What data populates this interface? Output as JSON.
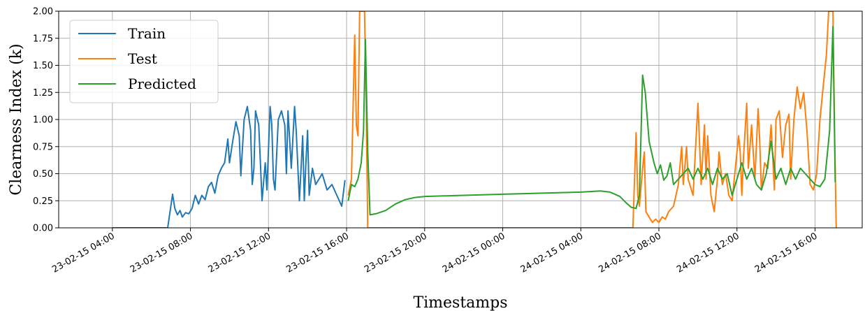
{
  "chart_data": {
    "type": "line",
    "xlabel": "Timestamps",
    "ylabel": "Clearness Index (k)",
    "ylim": [
      0,
      2.0
    ],
    "xlim": [
      "2023-02-15 01:15",
      "2024-02-15 18:25"
    ],
    "grid": true,
    "legend_placement": "top-left",
    "yticks": [
      "0.00",
      "0.25",
      "0.50",
      "0.75",
      "1.00",
      "1.25",
      "1.50",
      "1.75",
      "2.00"
    ],
    "xticks": [
      {
        "label": "23-02-15 04:00",
        "at": "2023-02-15 04:00"
      },
      {
        "label": "23-02-15 08:00",
        "at": "2023-02-15 08:00"
      },
      {
        "label": "23-02-15 12:00",
        "at": "2023-02-15 12:00"
      },
      {
        "label": "23-02-15 16:00",
        "at": "2023-02-15 16:00"
      },
      {
        "label": "23-02-15 20:00",
        "at": "2023-02-15 20:00"
      },
      {
        "label": "24-02-15 00:00",
        "at": "2024-02-15 00:00"
      },
      {
        "label": "24-02-15 04:00",
        "at": "2024-02-15 04:00"
      },
      {
        "label": "24-02-15 08:00",
        "at": "2024-02-15 08:00"
      },
      {
        "label": "24-02-15 12:00",
        "at": "2024-02-15 12:00"
      },
      {
        "label": "24-02-15 16:00",
        "at": "2024-02-15 16:00"
      }
    ],
    "series": [
      {
        "name": "Train",
        "color": "#1f77b4",
        "points": [
          [
            "2023-02-15 04:00",
            0
          ],
          [
            "2023-02-15 06:50",
            0
          ],
          [
            "2023-02-15 07:05",
            0.31
          ],
          [
            "2023-02-15 07:12",
            0.18
          ],
          [
            "2023-02-15 07:20",
            0.12
          ],
          [
            "2023-02-15 07:28",
            0.16
          ],
          [
            "2023-02-15 07:35",
            0.1
          ],
          [
            "2023-02-15 07:45",
            0.14
          ],
          [
            "2023-02-15 07:55",
            0.13
          ],
          [
            "2023-02-15 08:05",
            0.18
          ],
          [
            "2023-02-15 08:15",
            0.3
          ],
          [
            "2023-02-15 08:25",
            0.22
          ],
          [
            "2023-02-15 08:35",
            0.3
          ],
          [
            "2023-02-15 08:45",
            0.26
          ],
          [
            "2023-02-15 08:55",
            0.38
          ],
          [
            "2023-02-15 09:05",
            0.42
          ],
          [
            "2023-02-15 09:15",
            0.32
          ],
          [
            "2023-02-15 09:25",
            0.48
          ],
          [
            "2023-02-15 09:35",
            0.55
          ],
          [
            "2023-02-15 09:45",
            0.6
          ],
          [
            "2023-02-15 09:55",
            0.82
          ],
          [
            "2023-02-15 10:00",
            0.6
          ],
          [
            "2023-02-15 10:10",
            0.8
          ],
          [
            "2023-02-15 10:20",
            0.98
          ],
          [
            "2023-02-15 10:30",
            0.85
          ],
          [
            "2023-02-15 10:35",
            0.48
          ],
          [
            "2023-02-15 10:45",
            1.0
          ],
          [
            "2023-02-15 10:55",
            1.12
          ],
          [
            "2023-02-15 11:05",
            0.9
          ],
          [
            "2023-02-15 11:10",
            0.4
          ],
          [
            "2023-02-15 11:15",
            0.55
          ],
          [
            "2023-02-15 11:20",
            1.08
          ],
          [
            "2023-02-15 11:30",
            0.95
          ],
          [
            "2023-02-15 11:35",
            0.6
          ],
          [
            "2023-02-15 11:40",
            0.25
          ],
          [
            "2023-02-15 11:50",
            0.6
          ],
          [
            "2023-02-15 11:55",
            0.35
          ],
          [
            "2023-02-15 12:05",
            1.12
          ],
          [
            "2023-02-15 12:10",
            0.95
          ],
          [
            "2023-02-15 12:15",
            0.45
          ],
          [
            "2023-02-15 12:20",
            0.35
          ],
          [
            "2023-02-15 12:30",
            1.0
          ],
          [
            "2023-02-15 12:40",
            1.08
          ],
          [
            "2023-02-15 12:50",
            0.95
          ],
          [
            "2023-02-15 12:55",
            0.5
          ],
          [
            "2023-02-15 13:00",
            1.08
          ],
          [
            "2023-02-15 13:10",
            0.55
          ],
          [
            "2023-02-15 13:20",
            1.12
          ],
          [
            "2023-02-15 13:25",
            0.9
          ],
          [
            "2023-02-15 13:35",
            0.25
          ],
          [
            "2023-02-15 13:40",
            0.55
          ],
          [
            "2023-02-15 13:45",
            0.85
          ],
          [
            "2023-02-15 13:50",
            0.25
          ],
          [
            "2023-02-15 13:55",
            0.6
          ],
          [
            "2023-02-15 14:00",
            0.9
          ],
          [
            "2023-02-15 14:05",
            0.3
          ],
          [
            "2023-02-15 14:15",
            0.55
          ],
          [
            "2023-02-15 14:25",
            0.4
          ],
          [
            "2023-02-15 14:35",
            0.45
          ],
          [
            "2023-02-15 14:45",
            0.5
          ],
          [
            "2023-02-15 15:00",
            0.35
          ],
          [
            "2023-02-15 15:15",
            0.4
          ],
          [
            "2023-02-15 15:30",
            0.3
          ],
          [
            "2023-02-15 15:45",
            0.2
          ],
          [
            "2023-02-15 15:55",
            0.44
          ]
        ]
      },
      {
        "name": "Test",
        "color": "#ff7f0e",
        "points": [
          [
            "2023-02-15 16:05",
            0.3
          ],
          [
            "2023-02-15 16:15",
            0.45
          ],
          [
            "2023-02-15 16:25",
            1.78
          ],
          [
            "2023-02-15 16:30",
            0.95
          ],
          [
            "2023-02-15 16:35",
            0.85
          ],
          [
            "2023-02-15 16:40",
            2.0
          ],
          [
            "2023-02-15 16:55",
            2.0
          ],
          [
            "2023-02-15 17:00",
            1.2
          ],
          [
            "2023-02-15 17:05",
            0
          ],
          [
            "2023-02-15 20:00",
            0
          ],
          [
            "2024-02-15 00:00",
            0
          ],
          [
            "2024-02-15 06:40",
            0
          ],
          [
            "2024-02-15 06:50",
            0.88
          ],
          [
            "2024-02-15 06:55",
            0.3
          ],
          [
            "2024-02-15 07:00",
            0.2
          ],
          [
            "2024-02-15 07:10",
            0.55
          ],
          [
            "2024-02-15 07:15",
            0.7
          ],
          [
            "2024-02-15 07:20",
            0.15
          ],
          [
            "2024-02-15 07:30",
            0.1
          ],
          [
            "2024-02-15 07:40",
            0.05
          ],
          [
            "2024-02-15 07:50",
            0.08
          ],
          [
            "2024-02-15 08:00",
            0.05
          ],
          [
            "2024-02-15 08:10",
            0.1
          ],
          [
            "2024-02-15 08:20",
            0.08
          ],
          [
            "2024-02-15 08:30",
            0.15
          ],
          [
            "2024-02-15 08:45",
            0.2
          ],
          [
            "2024-02-15 09:00",
            0.4
          ],
          [
            "2024-02-15 09:10",
            0.75
          ],
          [
            "2024-02-15 09:15",
            0.4
          ],
          [
            "2024-02-15 09:25",
            0.75
          ],
          [
            "2024-02-15 09:30",
            0.45
          ],
          [
            "2024-02-15 09:45",
            0.3
          ],
          [
            "2024-02-15 10:00",
            1.15
          ],
          [
            "2024-02-15 10:10",
            0.4
          ],
          [
            "2024-02-15 10:20",
            0.95
          ],
          [
            "2024-02-15 10:25",
            0.45
          ],
          [
            "2024-02-15 10:30",
            0.85
          ],
          [
            "2024-02-15 10:40",
            0.3
          ],
          [
            "2024-02-15 10:50",
            0.15
          ],
          [
            "2024-02-15 11:00",
            0.45
          ],
          [
            "2024-02-15 11:05",
            0.7
          ],
          [
            "2024-02-15 11:15",
            0.4
          ],
          [
            "2024-02-15 11:25",
            0.5
          ],
          [
            "2024-02-15 11:35",
            0.3
          ],
          [
            "2024-02-15 11:45",
            0.25
          ],
          [
            "2024-02-15 11:55",
            0.55
          ],
          [
            "2024-02-15 12:05",
            0.85
          ],
          [
            "2024-02-15 12:10",
            0.7
          ],
          [
            "2024-02-15 12:15",
            0.3
          ],
          [
            "2024-02-15 12:20",
            0.65
          ],
          [
            "2024-02-15 12:30",
            1.15
          ],
          [
            "2024-02-15 12:35",
            0.55
          ],
          [
            "2024-02-15 12:45",
            0.95
          ],
          [
            "2024-02-15 12:50",
            0.7
          ],
          [
            "2024-02-15 12:55",
            0.45
          ],
          [
            "2024-02-15 13:05",
            1.1
          ],
          [
            "2024-02-15 13:10",
            0.8
          ],
          [
            "2024-02-15 13:15",
            0.35
          ],
          [
            "2024-02-15 13:25",
            0.6
          ],
          [
            "2024-02-15 13:35",
            0.55
          ],
          [
            "2024-02-15 13:45",
            0.95
          ],
          [
            "2024-02-15 13:55",
            0.35
          ],
          [
            "2024-02-15 14:00",
            1.0
          ],
          [
            "2024-02-15 14:10",
            1.08
          ],
          [
            "2024-02-15 14:20",
            0.65
          ],
          [
            "2024-02-15 14:30",
            0.95
          ],
          [
            "2024-02-15 14:40",
            1.05
          ],
          [
            "2024-02-15 14:45",
            0.45
          ],
          [
            "2024-02-15 14:55",
            1.0
          ],
          [
            "2024-02-15 15:05",
            1.3
          ],
          [
            "2024-02-15 15:15",
            1.1
          ],
          [
            "2024-02-15 15:25",
            1.25
          ],
          [
            "2024-02-15 15:35",
            0.9
          ],
          [
            "2024-02-15 15:45",
            0.4
          ],
          [
            "2024-02-15 15:55",
            0.35
          ],
          [
            "2024-02-15 16:05",
            0.5
          ],
          [
            "2024-02-15 16:15",
            1.0
          ],
          [
            "2024-02-15 16:25",
            1.3
          ],
          [
            "2024-02-15 16:35",
            1.6
          ],
          [
            "2024-02-15 16:42",
            2.0
          ],
          [
            "2024-02-15 16:55",
            2.0
          ],
          [
            "2024-02-15 17:00",
            0.9
          ],
          [
            "2024-02-15 17:05",
            0
          ]
        ]
      },
      {
        "name": "Predicted",
        "color": "#2ca02c",
        "points": [
          [
            "2023-02-15 16:05",
            0.25
          ],
          [
            "2023-02-15 16:15",
            0.4
          ],
          [
            "2023-02-15 16:25",
            0.38
          ],
          [
            "2023-02-15 16:35",
            0.45
          ],
          [
            "2023-02-15 16:45",
            0.6
          ],
          [
            "2023-02-15 16:52",
            0.9
          ],
          [
            "2023-02-15 16:58",
            1.74
          ],
          [
            "2023-02-15 17:05",
            0.7
          ],
          [
            "2023-02-15 17:12",
            0.12
          ],
          [
            "2023-02-15 17:30",
            0.13
          ],
          [
            "2023-02-15 18:00",
            0.16
          ],
          [
            "2023-02-15 18:30",
            0.22
          ],
          [
            "2023-02-15 19:00",
            0.26
          ],
          [
            "2023-02-15 19:30",
            0.28
          ],
          [
            "2023-02-15 20:00",
            0.29
          ],
          [
            "2023-02-15 22:00",
            0.3
          ],
          [
            "2024-02-15 00:00",
            0.31
          ],
          [
            "2024-02-15 02:00",
            0.32
          ],
          [
            "2024-02-15 04:00",
            0.33
          ],
          [
            "2024-02-15 05:00",
            0.34
          ],
          [
            "2024-02-15 05:30",
            0.33
          ],
          [
            "2024-02-15 06:00",
            0.29
          ],
          [
            "2024-02-15 06:20",
            0.23
          ],
          [
            "2024-02-15 06:35",
            0.19
          ],
          [
            "2024-02-15 06:50",
            0.18
          ],
          [
            "2024-02-15 07:00",
            0.3
          ],
          [
            "2024-02-15 07:10",
            1.41
          ],
          [
            "2024-02-15 07:18",
            1.25
          ],
          [
            "2024-02-15 07:30",
            0.8
          ],
          [
            "2024-02-15 07:45",
            0.6
          ],
          [
            "2024-02-15 07:55",
            0.5
          ],
          [
            "2024-02-15 08:05",
            0.58
          ],
          [
            "2024-02-15 08:15",
            0.44
          ],
          [
            "2024-02-15 08:25",
            0.48
          ],
          [
            "2024-02-15 08:35",
            0.6
          ],
          [
            "2024-02-15 08:45",
            0.4
          ],
          [
            "2024-02-15 09:00",
            0.45
          ],
          [
            "2024-02-15 09:15",
            0.5
          ],
          [
            "2024-02-15 09:30",
            0.55
          ],
          [
            "2024-02-15 09:45",
            0.45
          ],
          [
            "2024-02-15 10:00",
            0.55
          ],
          [
            "2024-02-15 10:15",
            0.45
          ],
          [
            "2024-02-15 10:30",
            0.55
          ],
          [
            "2024-02-15 10:45",
            0.4
          ],
          [
            "2024-02-15 11:00",
            0.55
          ],
          [
            "2024-02-15 11:15",
            0.45
          ],
          [
            "2024-02-15 11:30",
            0.5
          ],
          [
            "2024-02-15 11:45",
            0.3
          ],
          [
            "2024-02-15 12:00",
            0.45
          ],
          [
            "2024-02-15 12:15",
            0.6
          ],
          [
            "2024-02-15 12:30",
            0.45
          ],
          [
            "2024-02-15 12:45",
            0.55
          ],
          [
            "2024-02-15 13:00",
            0.4
          ],
          [
            "2024-02-15 13:15",
            0.35
          ],
          [
            "2024-02-15 13:30",
            0.5
          ],
          [
            "2024-02-15 13:45",
            0.8
          ],
          [
            "2024-02-15 14:00",
            0.45
          ],
          [
            "2024-02-15 14:15",
            0.55
          ],
          [
            "2024-02-15 14:30",
            0.4
          ],
          [
            "2024-02-15 14:45",
            0.55
          ],
          [
            "2024-02-15 15:00",
            0.45
          ],
          [
            "2024-02-15 15:15",
            0.55
          ],
          [
            "2024-02-15 15:30",
            0.5
          ],
          [
            "2024-02-15 15:45",
            0.45
          ],
          [
            "2024-02-15 16:00",
            0.4
          ],
          [
            "2024-02-15 16:15",
            0.38
          ],
          [
            "2024-02-15 16:30",
            0.45
          ],
          [
            "2024-02-15 16:45",
            0.9
          ],
          [
            "2024-02-15 16:55",
            1.86
          ],
          [
            "2024-02-15 17:02",
            0.42
          ]
        ]
      }
    ]
  }
}
